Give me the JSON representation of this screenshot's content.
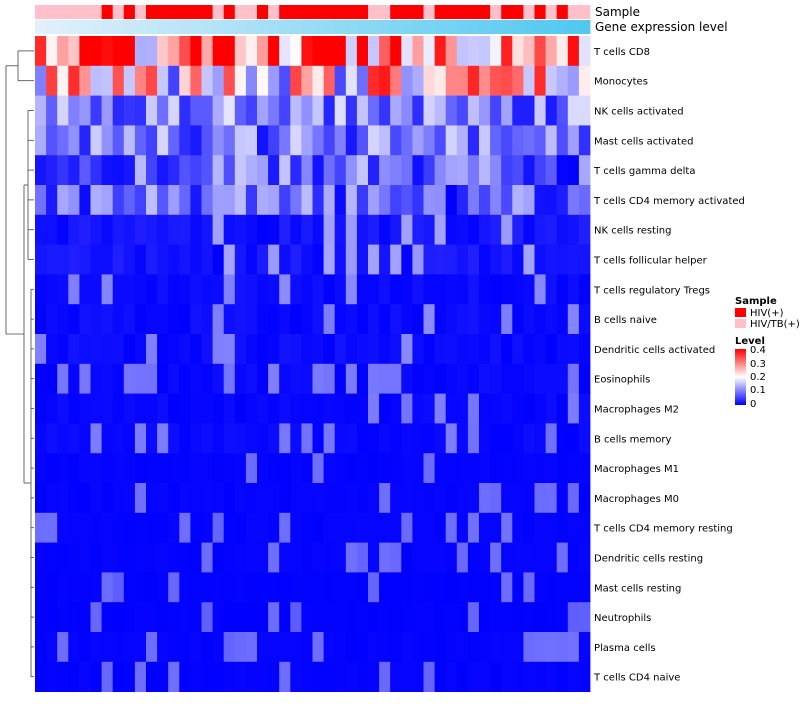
{
  "chart_data": {
    "type": "heatmap",
    "annotation_tracks": [
      "Sample",
      "Gene expression level"
    ],
    "rows": [
      "T cells CD8",
      "Monocytes",
      "NK cells activated",
      "Mast cells activated",
      "T cells gamma delta",
      "T cells CD4 memory activated",
      "NK cells resting",
      "T cells follicular helper",
      "T cells regulatory  Tregs",
      "B cells naive",
      "Dendritic cells activated",
      "Eosinophils",
      "Macrophages M2",
      "B cells memory",
      "Macrophages M1",
      "Macrophages M0",
      "T cells CD4 memory resting",
      "Dendritic cells resting",
      "Mast cells resting",
      "Neutrophils",
      "Plasma cells",
      "T cells CD4 naive"
    ],
    "n_columns": 50,
    "row_means": [
      0.31,
      0.22,
      0.1,
      0.09,
      0.08,
      0.07,
      0.05,
      0.05,
      0.03,
      0.03,
      0.03,
      0.02,
      0.02,
      0.02,
      0.01,
      0.01,
      0.01,
      0.01,
      0.005,
      0.005,
      0.01,
      0.01
    ],
    "sample_groups": [
      "HIV/TB(+)",
      "HIV/TB(+)",
      "HIV/TB(+)",
      "HIV/TB(+)",
      "HIV/TB(+)",
      "HIV/TB(+)",
      "HIV(+)",
      "HIV/TB(+)",
      "HIV(+)",
      "HIV/TB(+)",
      "HIV(+)",
      "HIV(+)",
      "HIV(+)",
      "HIV(+)",
      "HIV(+)",
      "HIV(+)",
      "HIV/TB(+)",
      "HIV(+)",
      "HIV/TB(+)",
      "HIV/TB(+)",
      "HIV(+)",
      "HIV/TB(+)",
      "HIV(+)",
      "HIV(+)",
      "HIV(+)",
      "HIV(+)",
      "HIV(+)",
      "HIV(+)",
      "HIV(+)",
      "HIV(+)",
      "HIV/TB(+)",
      "HIV/TB(+)",
      "HIV(+)",
      "HIV(+)",
      "HIV(+)",
      "HIV/TB(+)",
      "HIV(+)",
      "HIV(+)",
      "HIV(+)",
      "HIV(+)",
      "HIV(+)",
      "HIV/TB(+)",
      "HIV(+)",
      "HIV(+)",
      "HIV/TB(+)",
      "HIV(+)",
      "HIV/TB(+)",
      "HIV(+)",
      "HIV/TB(+)",
      "HIV/TB(+)"
    ],
    "expression_track": "gradient light to dark blue, increasing left to right",
    "legend": {
      "sample_title": "Sample",
      "sample_entries": [
        {
          "label": "HIV(+)",
          "color": "#ff0000"
        },
        {
          "label": "HIV/TB(+)",
          "color": "#ffc0cb"
        }
      ],
      "level_title": "Level",
      "level_ticks": [
        "0.4",
        "0.3",
        "0.2",
        "0.1",
        "0"
      ],
      "level_range": [
        0,
        0.4
      ],
      "level_colors": {
        "low": "#0000ff",
        "mid": "#ffffff",
        "high": "#ff0000"
      }
    },
    "dendrogram": "row clustering, left side"
  }
}
